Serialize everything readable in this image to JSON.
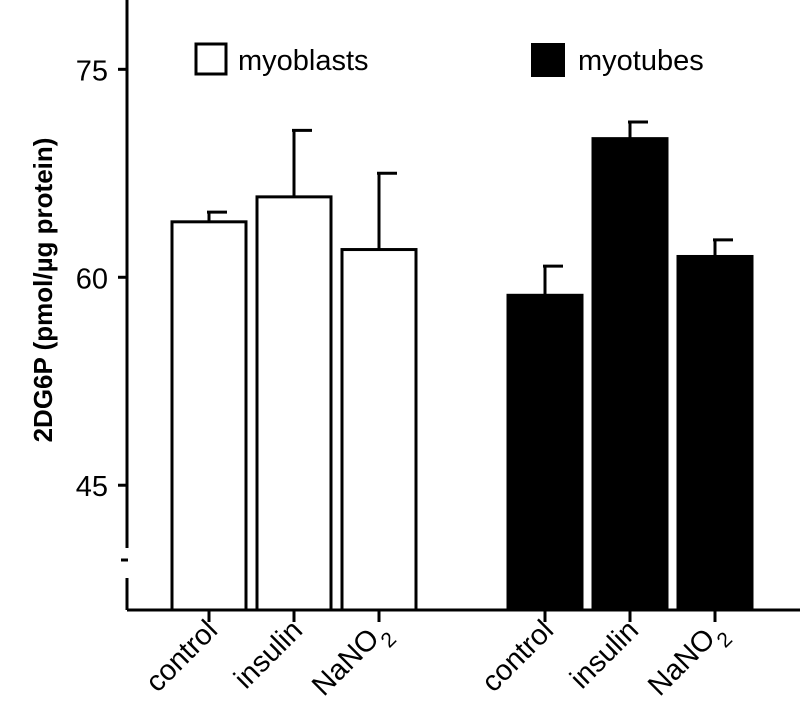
{
  "chart_data": {
    "type": "bar",
    "title": "",
    "xlabel": "",
    "ylabel": "2DG6P (pmol/µg protein)",
    "ylim": [
      36,
      80
    ],
    "yticks": [
      45,
      60,
      75
    ],
    "grid": false,
    "legend_position": "top",
    "colors": {
      "myoblasts": "#ffffff",
      "myotubes": "#000000",
      "edge": "#000000"
    },
    "groups": [
      {
        "name": "myoblasts",
        "categories": [
          {
            "base": "control",
            "sub": ""
          },
          {
            "base": "insulin",
            "sub": ""
          },
          {
            "base": "NaNO",
            "sub": "2"
          }
        ],
        "values": [
          64.0,
          65.8,
          62.0
        ],
        "errors": [
          0.7,
          4.8,
          5.5
        ]
      },
      {
        "name": "myotubes",
        "categories": [
          {
            "base": "control",
            "sub": ""
          },
          {
            "base": "insulin",
            "sub": ""
          },
          {
            "base": "NaNO",
            "sub": "2"
          }
        ],
        "values": [
          58.7,
          70.0,
          61.5
        ],
        "errors": [
          2.1,
          1.2,
          1.2
        ]
      }
    ]
  }
}
